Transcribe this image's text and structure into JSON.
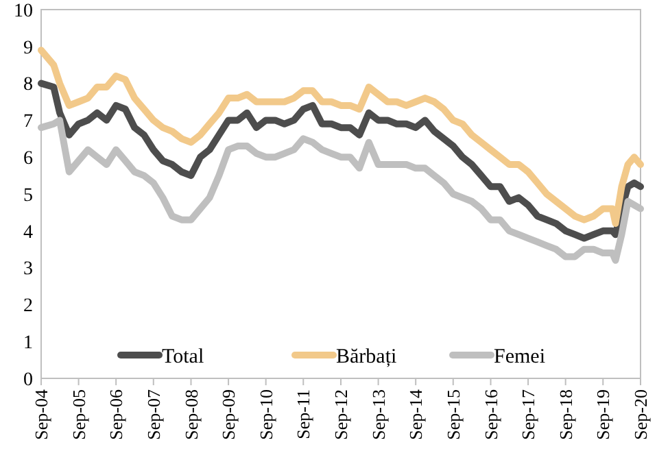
{
  "chart_data": {
    "type": "line",
    "x": [
      "2004-09",
      "2005-01",
      "2005-03",
      "2005-06",
      "2005-09",
      "2005-12",
      "2006-03",
      "2006-06",
      "2006-09",
      "2006-12",
      "2007-03",
      "2007-06",
      "2007-09",
      "2007-12",
      "2008-03",
      "2008-06",
      "2008-09",
      "2008-12",
      "2009-03",
      "2009-06",
      "2009-09",
      "2009-12",
      "2010-03",
      "2010-06",
      "2010-09",
      "2010-12",
      "2011-03",
      "2011-06",
      "2011-09",
      "2011-12",
      "2012-03",
      "2012-06",
      "2012-09",
      "2012-12",
      "2013-03",
      "2013-06",
      "2013-09",
      "2013-12",
      "2014-03",
      "2014-06",
      "2014-09",
      "2014-12",
      "2015-03",
      "2015-06",
      "2015-09",
      "2015-12",
      "2016-03",
      "2016-06",
      "2016-09",
      "2016-12",
      "2017-03",
      "2017-06",
      "2017-09",
      "2017-12",
      "2018-03",
      "2018-06",
      "2018-09",
      "2018-12",
      "2019-03",
      "2019-06",
      "2019-09",
      "2019-12",
      "2020-01",
      "2020-03",
      "2020-05",
      "2020-07",
      "2020-09"
    ],
    "series": [
      {
        "name": "Total",
        "color": "#4d4d4d",
        "values": [
          8.0,
          7.9,
          7.2,
          6.6,
          6.9,
          7.0,
          7.2,
          7.0,
          7.4,
          7.3,
          6.8,
          6.6,
          6.2,
          5.9,
          5.8,
          5.6,
          5.5,
          6.0,
          6.2,
          6.6,
          7.0,
          7.0,
          7.2,
          6.8,
          7.0,
          7.0,
          6.9,
          7.0,
          7.3,
          7.4,
          6.9,
          6.9,
          6.8,
          6.8,
          6.6,
          7.2,
          7.0,
          7.0,
          6.9,
          6.9,
          6.8,
          7.0,
          6.7,
          6.5,
          6.3,
          6.0,
          5.8,
          5.5,
          5.2,
          5.2,
          4.8,
          4.9,
          4.7,
          4.4,
          4.3,
          4.2,
          4.0,
          3.9,
          3.8,
          3.9,
          4.0,
          4.0,
          3.9,
          4.6,
          5.2,
          5.3,
          5.2
        ]
      },
      {
        "name": "Bărbați",
        "color": "#f2c98a",
        "values": [
          8.9,
          8.5,
          8.0,
          7.4,
          7.5,
          7.6,
          7.9,
          7.9,
          8.2,
          8.1,
          7.6,
          7.3,
          7.0,
          6.8,
          6.7,
          6.5,
          6.4,
          6.6,
          6.9,
          7.2,
          7.6,
          7.6,
          7.7,
          7.5,
          7.5,
          7.5,
          7.5,
          7.6,
          7.8,
          7.8,
          7.5,
          7.5,
          7.4,
          7.4,
          7.3,
          7.9,
          7.7,
          7.5,
          7.5,
          7.4,
          7.5,
          7.6,
          7.5,
          7.3,
          7.0,
          6.9,
          6.6,
          6.4,
          6.2,
          6.0,
          5.8,
          5.8,
          5.6,
          5.3,
          5.0,
          4.8,
          4.6,
          4.4,
          4.3,
          4.4,
          4.6,
          4.6,
          4.2,
          5.2,
          5.8,
          6.0,
          5.8
        ]
      },
      {
        "name": "Femei",
        "color": "#bfbfbf",
        "values": [
          6.8,
          6.9,
          7.0,
          5.6,
          5.9,
          6.2,
          6.0,
          5.8,
          6.2,
          5.9,
          5.6,
          5.5,
          5.3,
          4.9,
          4.4,
          4.3,
          4.3,
          4.6,
          4.9,
          5.5,
          6.2,
          6.3,
          6.3,
          6.1,
          6.0,
          6.0,
          6.1,
          6.2,
          6.5,
          6.4,
          6.2,
          6.1,
          6.0,
          6.0,
          5.7,
          6.4,
          5.8,
          5.8,
          5.8,
          5.8,
          5.7,
          5.7,
          5.5,
          5.3,
          5.0,
          4.9,
          4.8,
          4.6,
          4.3,
          4.3,
          4.0,
          3.9,
          3.8,
          3.7,
          3.6,
          3.5,
          3.3,
          3.3,
          3.5,
          3.5,
          3.4,
          3.4,
          3.2,
          3.9,
          4.8,
          4.7,
          4.6
        ]
      }
    ],
    "xlim": [
      "2004-09",
      "2020-09"
    ],
    "xticks": [
      {
        "value": "2004-09",
        "label": "Sep-04"
      },
      {
        "value": "2005-09",
        "label": "Sep-05"
      },
      {
        "value": "2006-09",
        "label": "Sep-06"
      },
      {
        "value": "2007-09",
        "label": "Sep-07"
      },
      {
        "value": "2008-09",
        "label": "Sep-08"
      },
      {
        "value": "2009-09",
        "label": "Sep-09"
      },
      {
        "value": "2010-09",
        "label": "Sep-10"
      },
      {
        "value": "2011-09",
        "label": "Sep-11"
      },
      {
        "value": "2012-09",
        "label": "Sep-12"
      },
      {
        "value": "2013-09",
        "label": "Sep-13"
      },
      {
        "value": "2014-09",
        "label": "Sep-14"
      },
      {
        "value": "2015-09",
        "label": "Sep-15"
      },
      {
        "value": "2016-09",
        "label": "Sep-16"
      },
      {
        "value": "2017-09",
        "label": "Sep-17"
      },
      {
        "value": "2018-09",
        "label": "Sep-18"
      },
      {
        "value": "2019-09",
        "label": "Sep-19"
      },
      {
        "value": "2020-09",
        "label": "Sep-20"
      }
    ],
    "ylim": [
      0,
      10
    ],
    "yticks": [
      0,
      1,
      2,
      3,
      4,
      5,
      6,
      7,
      8,
      9,
      10
    ],
    "legend": "bottom",
    "grid": false,
    "marker": "none",
    "line_style": "solid"
  }
}
